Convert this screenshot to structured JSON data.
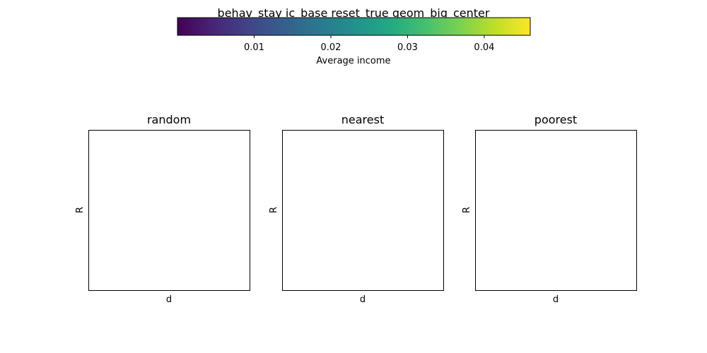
{
  "chart_data": {
    "type": "heatmap",
    "title": "behav_stay ic_base reset_true geom_big_center",
    "colorbar": {
      "label": "Average income",
      "colormap": "viridis",
      "range": [
        0.0,
        0.046
      ],
      "ticks": [
        0.01,
        0.02,
        0.03,
        0.04
      ],
      "tick_labels": [
        "0.01",
        "0.02",
        "0.03",
        "0.04"
      ],
      "orientation": "horizontal",
      "colors": [
        "#440154",
        "#482475",
        "#414487",
        "#355f8d",
        "#2a788e",
        "#21918c",
        "#22a884",
        "#44bf70",
        "#7ad151",
        "#bddf26",
        "#fde725"
      ]
    },
    "panels": [
      {
        "title": "random",
        "xlabel": "d",
        "ylabel": "R",
        "values": []
      },
      {
        "title": "nearest",
        "xlabel": "d",
        "ylabel": "R",
        "values": []
      },
      {
        "title": "poorest",
        "xlabel": "d",
        "ylabel": "R",
        "values": []
      }
    ]
  }
}
